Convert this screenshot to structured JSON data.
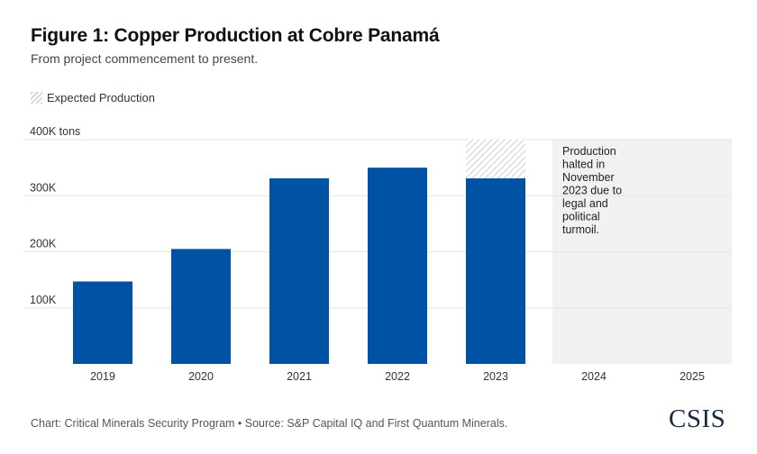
{
  "title": "Figure 1: Copper Production at Cobre Panamá",
  "subtitle": "From project commencement to present.",
  "legend": {
    "label": "Expected Production",
    "swatch_icon": "hatch-pattern-icon"
  },
  "footer": "Chart: Critical Minerals Security Program • Source: S&P Capital IQ and First Quantum Minerals.",
  "logo": "CSIS",
  "colors": {
    "bar": "#0052a5",
    "grid": "#e6e6e6",
    "halted_region": "#f1f1f1",
    "hatch": "#cfcfcf"
  },
  "chart_data": {
    "type": "bar",
    "categories": [
      "2019",
      "2020",
      "2021",
      "2022",
      "2023",
      "2024",
      "2025"
    ],
    "series": [
      {
        "name": "",
        "values": [
          147,
          205,
          331,
          350,
          331,
          null,
          null
        ]
      },
      {
        "name": "Expected Production",
        "values": [
          null,
          null,
          null,
          null,
          70,
          null,
          null
        ],
        "stacked_on": 0,
        "style": "hatched"
      }
    ],
    "unit": "K tons",
    "ylim": [
      0,
      400
    ],
    "yticks": [
      100,
      200,
      300,
      400
    ],
    "ytick_labels": [
      "100K",
      "200K",
      "300K",
      "400K tons"
    ],
    "grid": true,
    "legend_position": "top-left",
    "annotation": {
      "text_lines": [
        "Production",
        "halted in",
        "November",
        "2023 due to",
        "legal and",
        "political",
        "turmoil."
      ],
      "shaded_categories": [
        "2024",
        "2025"
      ]
    }
  }
}
